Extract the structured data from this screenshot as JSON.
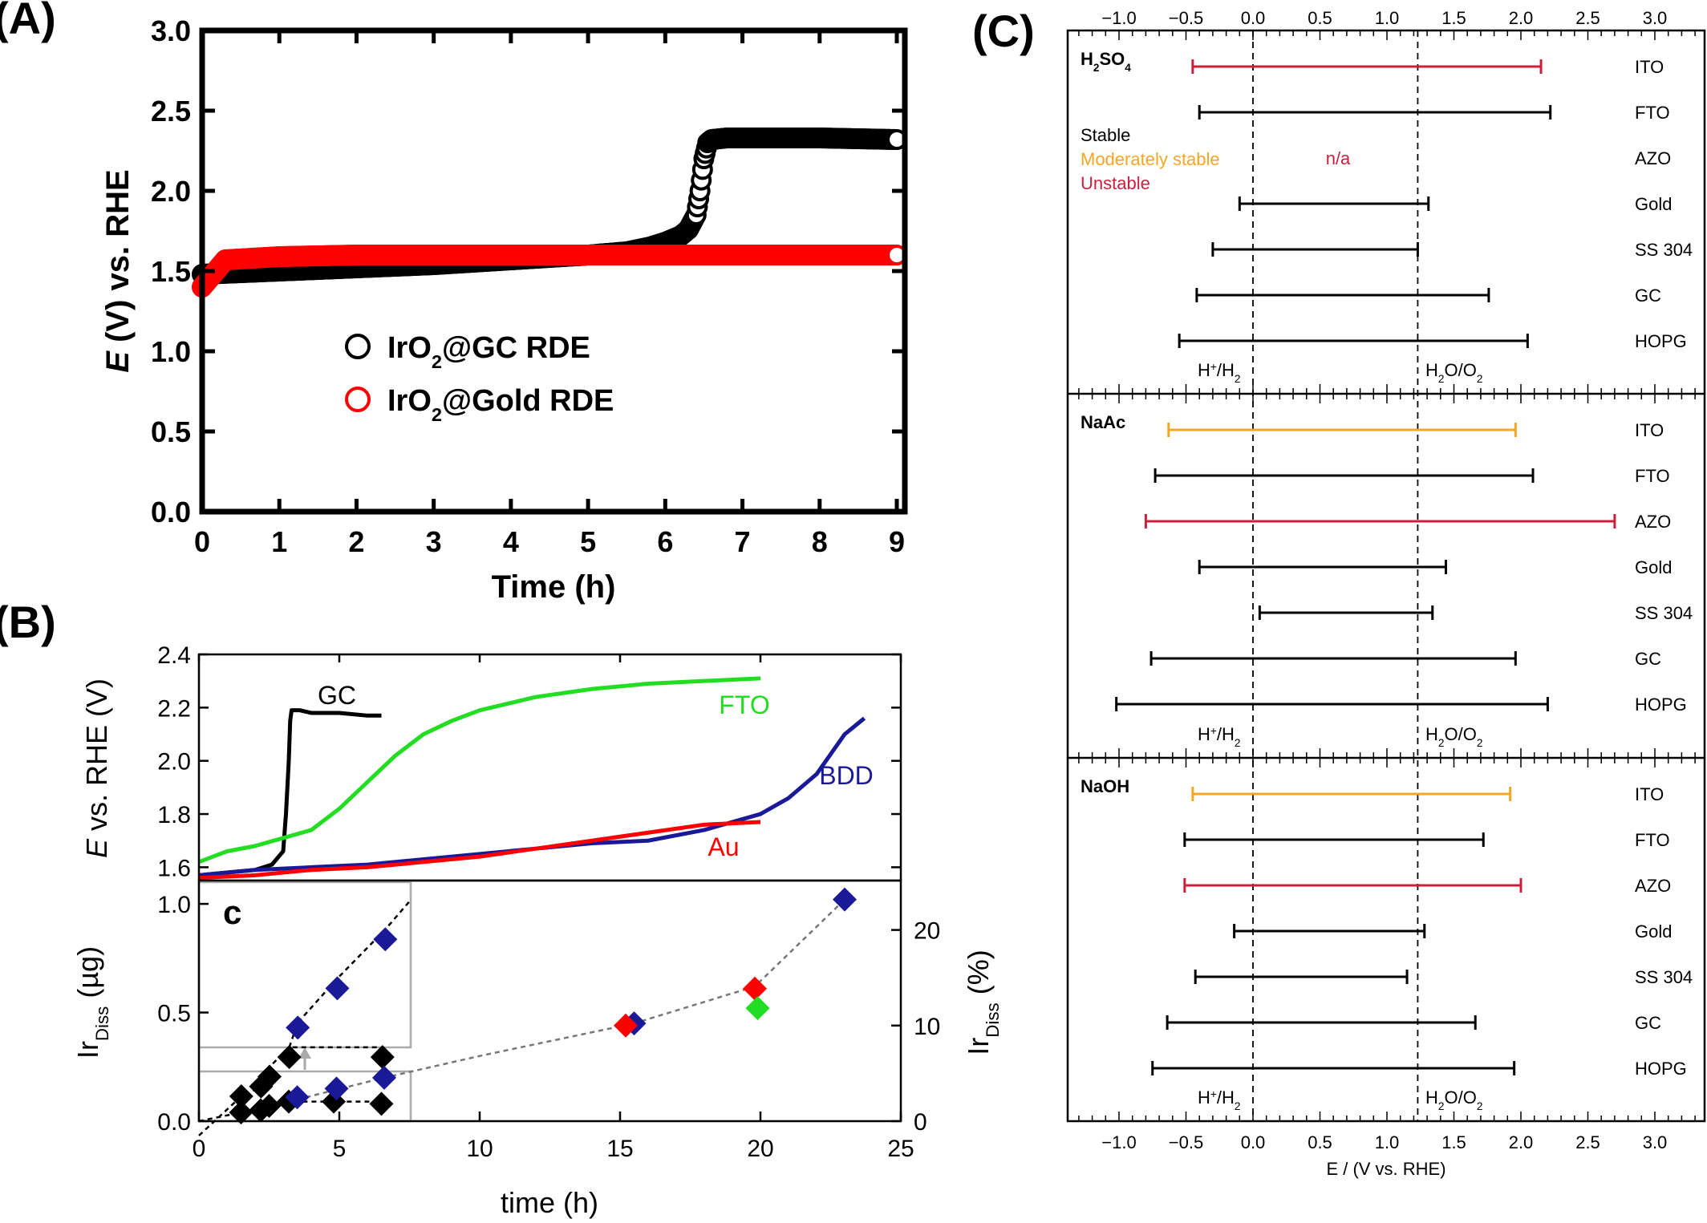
{
  "colors": {
    "black": "#000000",
    "red": "#ff0000",
    "green": "#22dd22",
    "navy": "#1a1a99",
    "gold": "#f5a623",
    "crimson": "#cc1f3c",
    "gray": "#888888"
  },
  "panels": {
    "a": "(A)",
    "b": "(B)",
    "c": "(C)"
  },
  "chart_data": [
    {
      "id": "A",
      "type": "scatter",
      "title": "",
      "xlabel": "Time (h)",
      "ylabel_italic": "E",
      "ylabel_rest": " (V) vs. RHE",
      "xlim": [
        0,
        9
      ],
      "ylim": [
        0,
        3
      ],
      "xticks": [
        "0",
        "1",
        "2",
        "3",
        "4",
        "5",
        "6",
        "7",
        "8",
        "9"
      ],
      "yticks": [
        "0.0",
        "0.5",
        "1.0",
        "1.5",
        "2.0",
        "2.5",
        "3.0"
      ],
      "legend_position": "center",
      "legend": [
        {
          "pre": "IrO",
          "sub": "2",
          "post": "@GC RDE",
          "color": "#000000"
        },
        {
          "pre": "IrO",
          "sub": "2",
          "post": "@Gold RDE",
          "color": "#ff0000"
        }
      ],
      "series": [
        {
          "name": "IrO2@GC RDE",
          "color": "#000000",
          "x": [
            0,
            0.5,
            1,
            2,
            3,
            4,
            5,
            5.5,
            5.8,
            6.0,
            6.2,
            6.3,
            6.4,
            6.45,
            6.5,
            6.55,
            6.6,
            6.8,
            7,
            8,
            9
          ],
          "y": [
            1.48,
            1.49,
            1.5,
            1.52,
            1.54,
            1.57,
            1.6,
            1.62,
            1.65,
            1.68,
            1.72,
            1.76,
            1.85,
            2.0,
            2.2,
            2.3,
            2.32,
            2.33,
            2.33,
            2.33,
            2.32
          ]
        },
        {
          "name": "IrO2@Gold RDE",
          "color": "#ff0000",
          "x": [
            0,
            0.3,
            1,
            2,
            3,
            4,
            5,
            6,
            7,
            8,
            9
          ],
          "y": [
            1.4,
            1.57,
            1.59,
            1.6,
            1.6,
            1.6,
            1.6,
            1.6,
            1.6,
            1.6,
            1.6
          ]
        }
      ]
    },
    {
      "id": "B-top",
      "type": "line",
      "title": "",
      "xlabel": "",
      "ylabel_italic": "E",
      "ylabel_rest": " vs. RHE (V)",
      "xlim": [
        0,
        25
      ],
      "ylim": [
        1.55,
        2.4
      ],
      "yticks": [
        "1.6",
        "1.8",
        "2.0",
        "2.2",
        "2.4"
      ],
      "series": [
        {
          "name": "GC",
          "color": "#000000",
          "x": [
            0,
            1,
            2,
            2.6,
            3.0,
            3.1,
            3.2,
            3.25,
            3.3,
            3.6,
            4,
            5,
            6,
            6.5
          ],
          "y": [
            1.57,
            1.58,
            1.59,
            1.61,
            1.66,
            1.8,
            2.0,
            2.15,
            2.19,
            2.19,
            2.18,
            2.18,
            2.17,
            2.17
          ]
        },
        {
          "name": "FTO",
          "color": "#22dd22",
          "x": [
            0,
            1,
            2,
            3,
            4,
            5,
            6,
            7,
            8,
            9,
            10,
            12,
            14,
            16,
            18,
            20
          ],
          "y": [
            1.62,
            1.66,
            1.68,
            1.71,
            1.74,
            1.82,
            1.92,
            2.02,
            2.1,
            2.15,
            2.19,
            2.24,
            2.27,
            2.29,
            2.3,
            2.31
          ]
        },
        {
          "name": "BDD",
          "color": "#1a1a99",
          "x": [
            0,
            2,
            4,
            6,
            8,
            10,
            12,
            14,
            16,
            18,
            20,
            21,
            22,
            23,
            23.7
          ],
          "y": [
            1.57,
            1.59,
            1.6,
            1.61,
            1.63,
            1.65,
            1.67,
            1.69,
            1.7,
            1.74,
            1.8,
            1.86,
            1.95,
            2.1,
            2.16
          ]
        },
        {
          "name": "Au",
          "color": "#ff0000",
          "x": [
            0,
            2,
            4,
            6,
            8,
            10,
            12,
            14,
            16,
            18,
            20
          ],
          "y": [
            1.56,
            1.57,
            1.59,
            1.6,
            1.62,
            1.64,
            1.67,
            1.7,
            1.73,
            1.76,
            1.77
          ]
        }
      ]
    },
    {
      "id": "B-bottom",
      "type": "scatter",
      "title": "",
      "xlabel": "time (h)",
      "ylabel_left": "Ir",
      "ylabel_left_sub": "Diss",
      "ylabel_left_unit": " (µg)",
      "ylabel_right": "Ir",
      "ylabel_right_sub": "Diss",
      "ylabel_right_unit": " (%)",
      "xlim": [
        0,
        25
      ],
      "ylim": [
        0,
        1.1
      ],
      "xticks": [
        "0",
        "5",
        "10",
        "15",
        "20",
        "25"
      ],
      "yticks": [
        "0.0",
        "0.5",
        "1.0"
      ],
      "yticks_right": [
        "0",
        "10",
        "20"
      ],
      "inset_label": "c",
      "series": [
        {
          "name": "",
          "color": "#000000",
          "x": [
            1.5,
            2.2,
            2.5,
            3.2,
            4.8,
            6.5
          ],
          "y": [
            0.04,
            0.05,
            0.07,
            0.09,
            0.09,
            0.08
          ]
        },
        {
          "name": "",
          "color": "#1a1a99",
          "x": [
            3.5,
            4.9,
            6.6,
            15.5,
            23.0
          ],
          "y": [
            0.11,
            0.15,
            0.2,
            0.45,
            1.02
          ]
        },
        {
          "name": "",
          "color": "#ff0000",
          "x": [
            15.2,
            19.8
          ],
          "y": [
            0.44,
            0.61
          ]
        },
        {
          "name": "",
          "color": "#22dd22",
          "x": [
            19.9
          ],
          "y": [
            0.52
          ]
        }
      ]
    },
    {
      "id": "C",
      "type": "range",
      "title": "",
      "xlabel": "E / (V vs. RHE)",
      "xlim": [
        -1.4,
        3.4
      ],
      "xticks": [
        "−1.0",
        "−0.5",
        "0.0",
        "0.5",
        "1.0",
        "1.5",
        "2.0",
        "2.5",
        "3.0"
      ],
      "ref_lines": [
        {
          "x": 0.0,
          "pre": "H",
          "sup": "+",
          "mid": "/H",
          "sub": "2",
          "post": ""
        },
        {
          "x": 1.23,
          "pre": "H",
          "sub": "2",
          "mid": "O/O",
          "sub2": "2"
        }
      ],
      "legend": [
        {
          "label": "Stable",
          "color": "#000000"
        },
        {
          "label": "Moderately stable",
          "color": "#f5a623"
        },
        {
          "label": "Unstable",
          "color": "#cc1f3c"
        }
      ],
      "na_label": "n/a",
      "groups": [
        {
          "name_pre": "H",
          "name_sub": "2",
          "name_post": "SO",
          "name_sub2": "4",
          "rows": [
            {
              "label": "ITO",
              "min": -0.45,
              "max": 2.15,
              "status": "unstable"
            },
            {
              "label": "FTO",
              "min": -0.4,
              "max": 2.22,
              "status": "stable"
            },
            {
              "label": "AZO",
              "min": null,
              "max": null,
              "status": "na"
            },
            {
              "label": "Gold",
              "min": -0.1,
              "max": 1.31,
              "status": "stable"
            },
            {
              "label": "SS 304",
              "min": -0.3,
              "max": 1.23,
              "status": "stable"
            },
            {
              "label": "GC",
              "min": -0.42,
              "max": 1.76,
              "status": "stable"
            },
            {
              "label": "HOPG",
              "min": -0.55,
              "max": 2.05,
              "status": "stable"
            }
          ]
        },
        {
          "name_pre": "NaAc",
          "rows": [
            {
              "label": "ITO",
              "min": -0.63,
              "max": 1.96,
              "status": "moderate"
            },
            {
              "label": "FTO",
              "min": -0.73,
              "max": 2.09,
              "status": "stable"
            },
            {
              "label": "AZO",
              "min": -0.8,
              "max": 2.7,
              "status": "unstable"
            },
            {
              "label": "Gold",
              "min": -0.4,
              "max": 1.44,
              "status": "stable"
            },
            {
              "label": "SS 304",
              "min": 0.05,
              "max": 1.34,
              "status": "stable"
            },
            {
              "label": "GC",
              "min": -0.76,
              "max": 1.96,
              "status": "stable"
            },
            {
              "label": "HOPG",
              "min": -1.02,
              "max": 2.2,
              "status": "stable"
            }
          ]
        },
        {
          "name_pre": "NaOH",
          "rows": [
            {
              "label": "ITO",
              "min": -0.45,
              "max": 1.92,
              "status": "moderate"
            },
            {
              "label": "FTO",
              "min": -0.51,
              "max": 1.72,
              "status": "stable"
            },
            {
              "label": "AZO",
              "min": -0.51,
              "max": 2.0,
              "status": "unstable"
            },
            {
              "label": "Gold",
              "min": -0.14,
              "max": 1.28,
              "status": "stable"
            },
            {
              "label": "SS 304",
              "min": -0.43,
              "max": 1.15,
              "status": "stable"
            },
            {
              "label": "GC",
              "min": -0.64,
              "max": 1.66,
              "status": "stable"
            },
            {
              "label": "HOPG",
              "min": -0.75,
              "max": 1.95,
              "status": "stable"
            }
          ]
        }
      ]
    }
  ]
}
